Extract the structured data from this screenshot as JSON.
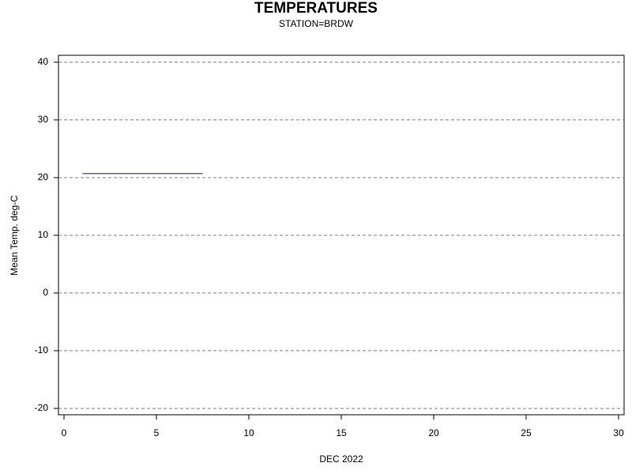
{
  "chart_data": {
    "type": "line",
    "title": "TEMPERATURES",
    "subtitle": "STATION=BRDW",
    "x_label": "DEC 2022",
    "y_label": "Mean Temp. deg-C",
    "x": [
      1,
      7.5
    ],
    "series": [
      {
        "color": "#0000ff",
        "values": [
          20.7,
          20.7
        ]
      }
    ],
    "xlim": [
      -0.3,
      30.3
    ],
    "xticks": [
      0,
      5,
      10,
      15,
      20,
      25,
      30
    ],
    "ylim": [
      -21.1,
      41.2
    ],
    "yticks": [
      -20,
      -10,
      0,
      10,
      20,
      30,
      40
    ],
    "grid": true
  }
}
